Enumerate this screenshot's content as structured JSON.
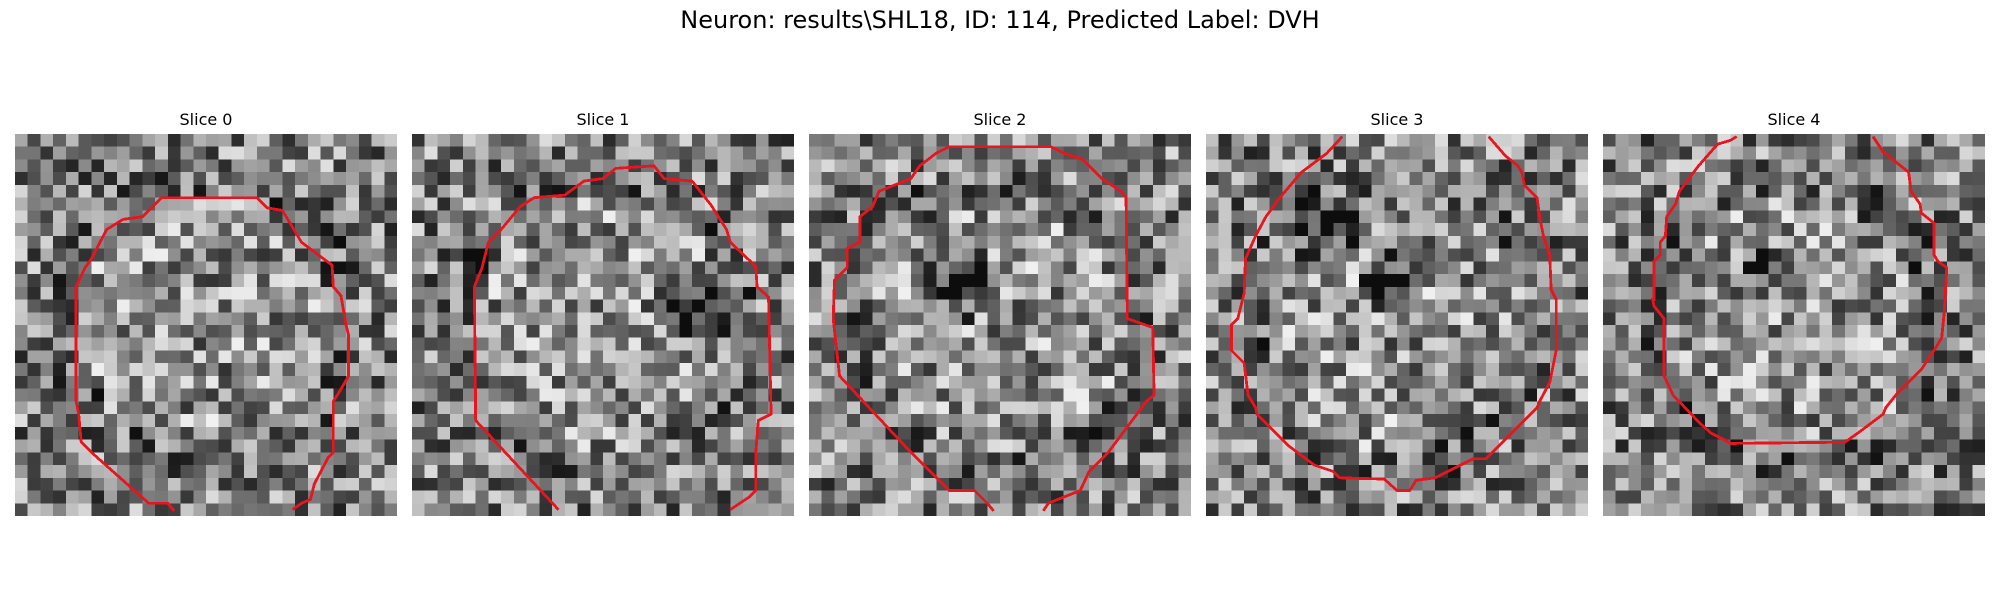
{
  "figure": {
    "suptitle": "Neuron: results\\SHL18, ID: 114, Predicted Label: DVH",
    "contour_color": "#e8141e"
  },
  "panels": [
    {
      "title": "Slice 0"
    },
    {
      "title": "Slice 1"
    },
    {
      "title": "Slice 2"
    },
    {
      "title": "Slice 3"
    },
    {
      "title": "Slice 4"
    }
  ]
}
